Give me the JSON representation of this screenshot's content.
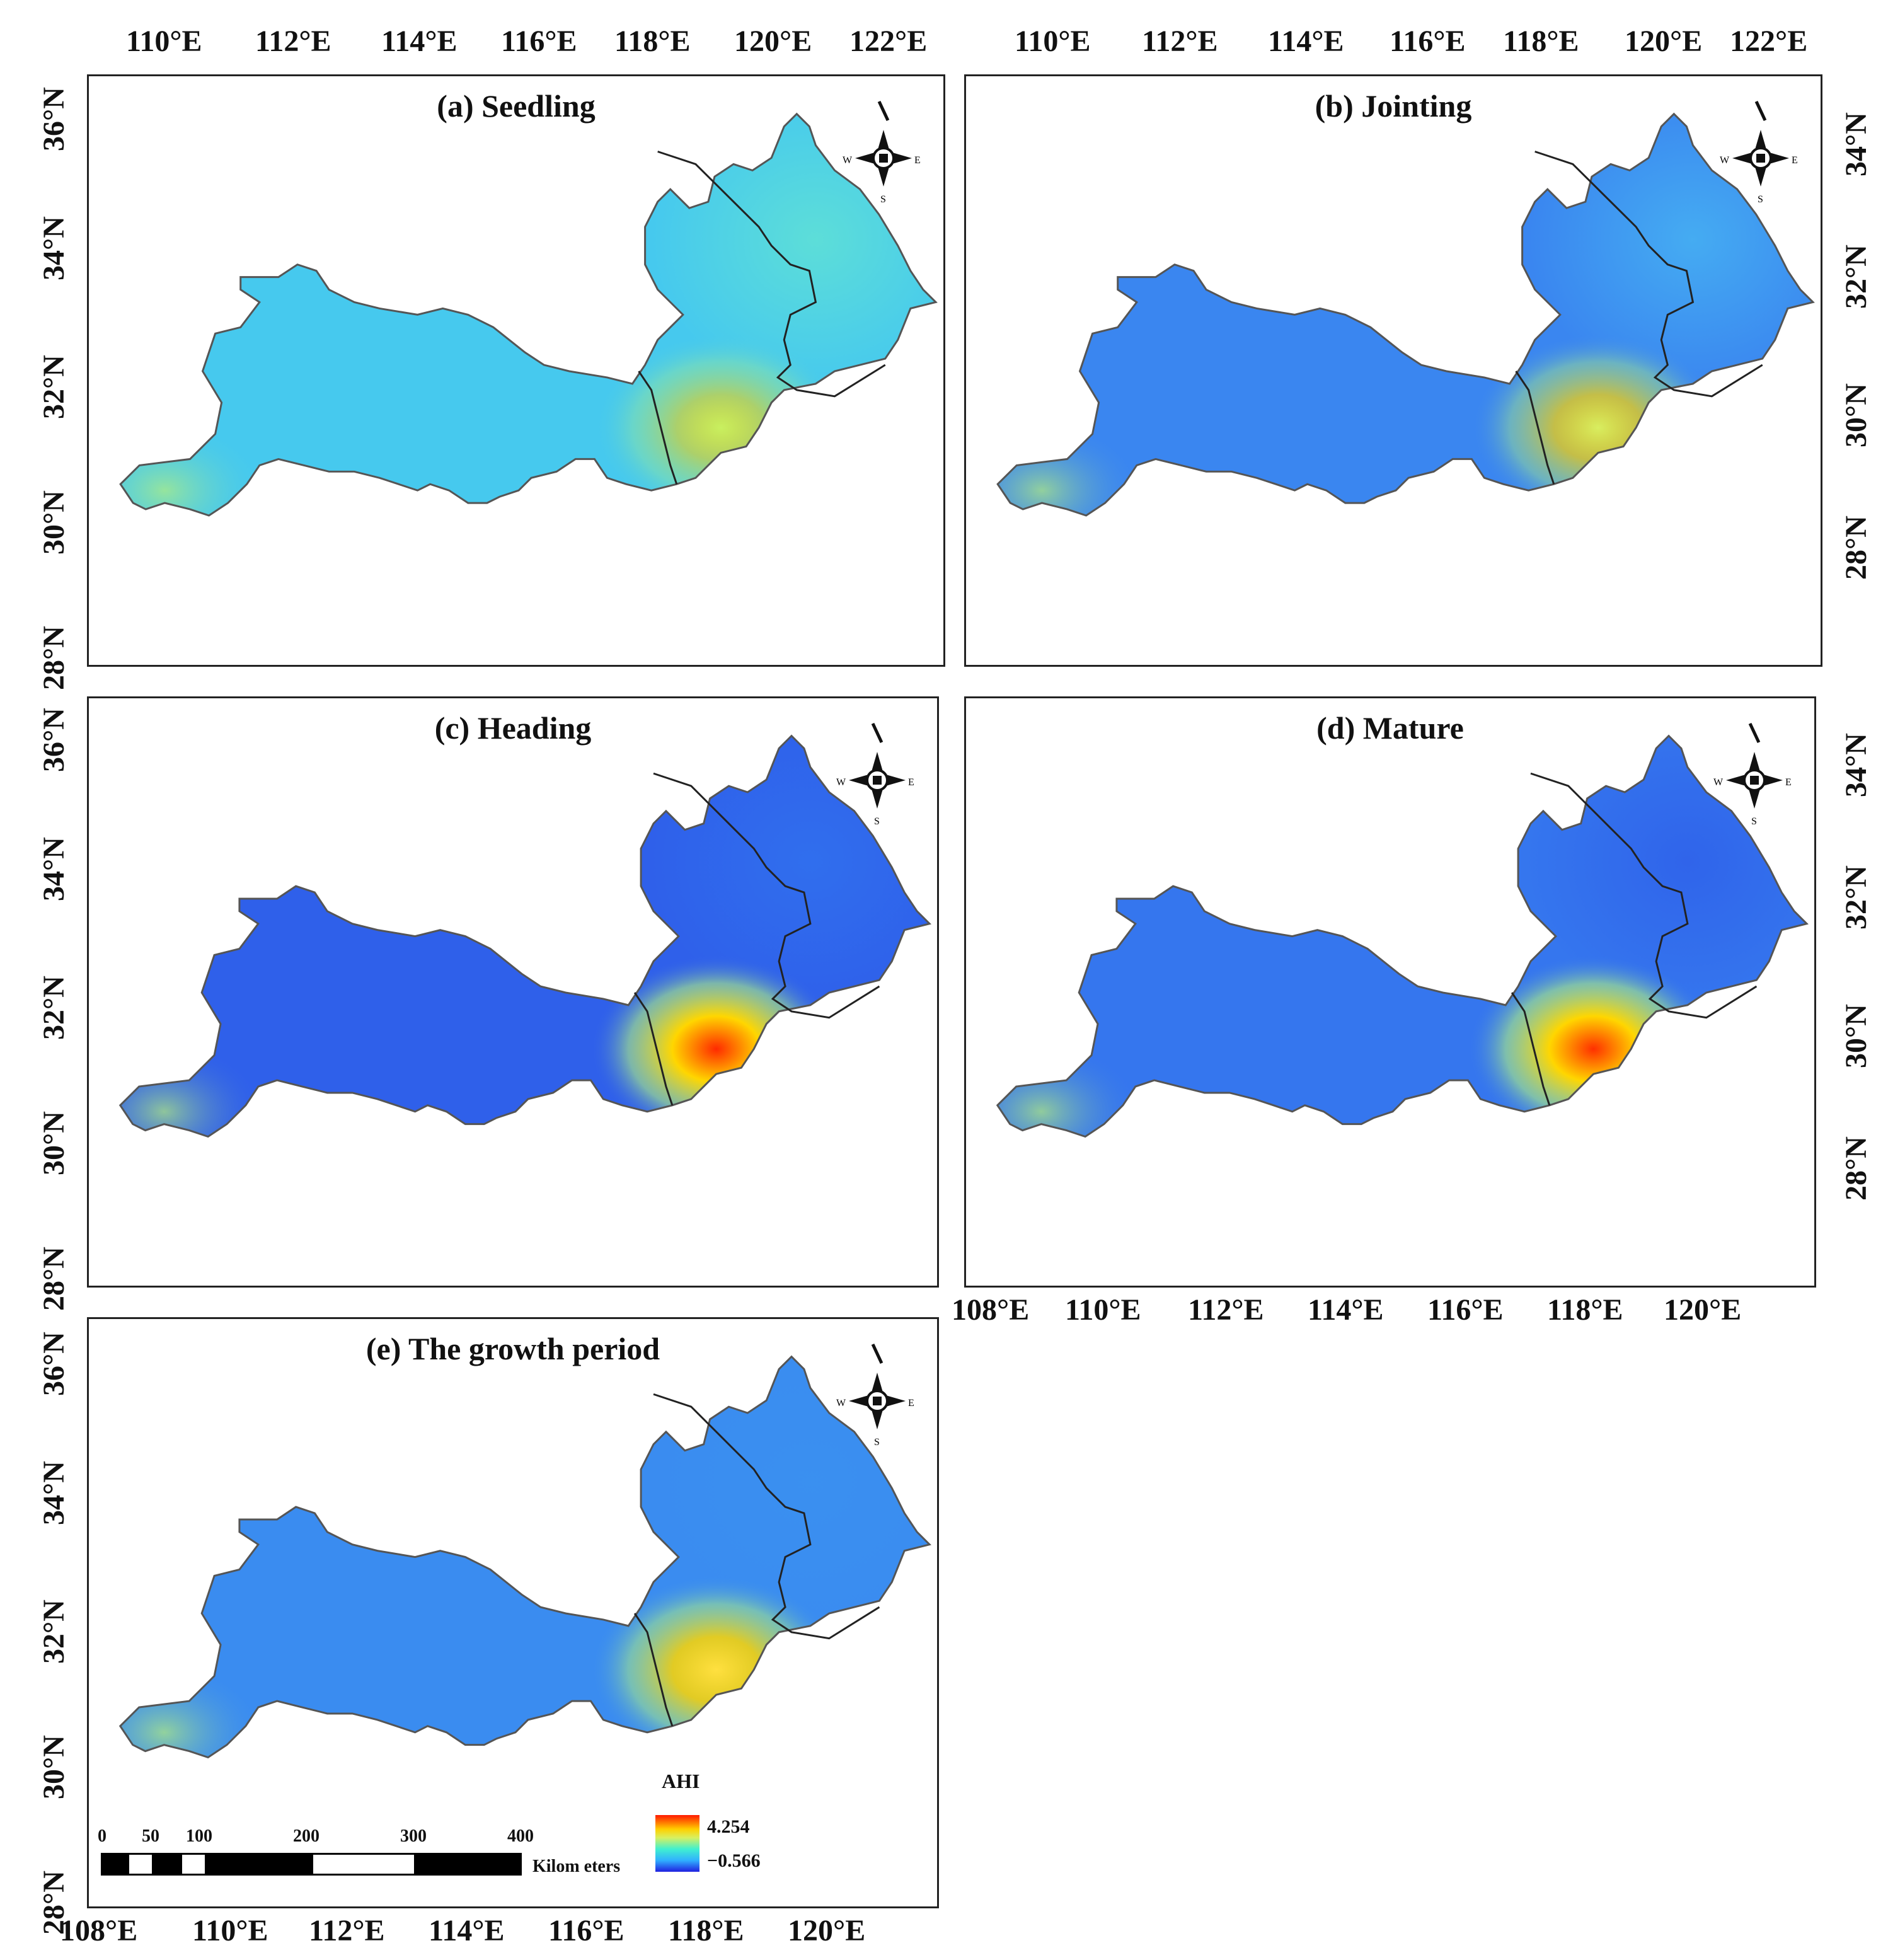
{
  "panels": [
    {
      "id": "a",
      "title": "(a) Seedling"
    },
    {
      "id": "b",
      "title": "(b) Jointing"
    },
    {
      "id": "c",
      "title": "(c) Heading"
    },
    {
      "id": "d",
      "title": "(d) Mature"
    },
    {
      "id": "e",
      "title": "(e) The growth period"
    }
  ],
  "axes": {
    "top_lon_labels": [
      "110°E",
      "112°E",
      "114°E",
      "116°E",
      "118°E",
      "120°E",
      "122°E"
    ],
    "bottom_lon_labels": [
      "108°E",
      "110°E",
      "112°E",
      "114°E",
      "116°E",
      "118°E",
      "120°E"
    ],
    "left_lat_labels": [
      "36°N",
      "34°N",
      "32°N",
      "30°N",
      "28°N"
    ],
    "right_lat_labels": [
      "34°N",
      "32°N",
      "30°N",
      "28°N"
    ]
  },
  "compass": {
    "icon": "north-arrow-icon",
    "labels": [
      "N",
      "W",
      "E",
      "S"
    ]
  },
  "legend": {
    "title": "AHI",
    "max": "4.254",
    "min": "−0.566",
    "colors": [
      "#ff1a00",
      "#ffd000",
      "#d8f060",
      "#40f0d0",
      "#30b0ff",
      "#2020e0"
    ]
  },
  "scale_bar": {
    "labels": [
      "0",
      "50",
      "100",
      "200",
      "300",
      "400"
    ],
    "unit": "Kilom eters"
  },
  "map_styles": {
    "a": {
      "base": "#46c9ee",
      "east": "#5fe0d6",
      "hot": "#c8f060"
    },
    "b": {
      "base": "#3a86f0",
      "east": "#46b0f2",
      "hot": "#d8ee60"
    },
    "c": {
      "base": "#2f60ea",
      "east": "#3070ee",
      "hot": "#ff2a00"
    },
    "d": {
      "base": "#3576ee",
      "east": "#2f62ea",
      "hot": "#ff3000"
    },
    "e": {
      "base": "#3a8cf0",
      "east": "#3a90f0",
      "hot": "#ffe040"
    }
  }
}
